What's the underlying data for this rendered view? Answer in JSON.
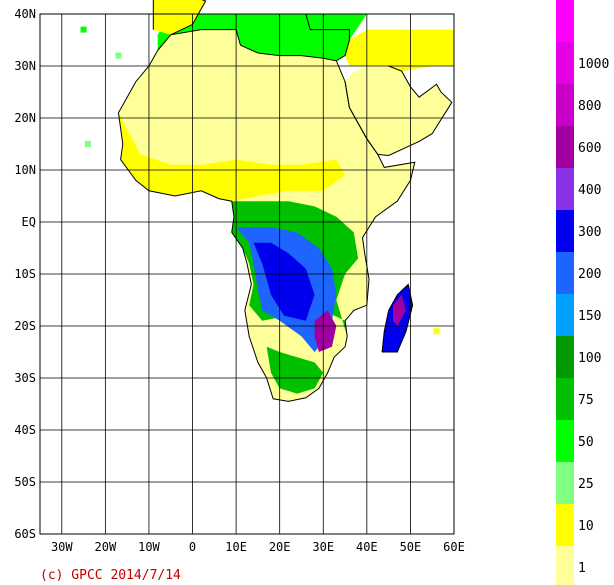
{
  "map": {
    "lon_range": [
      -35,
      60
    ],
    "lat_range": [
      -60,
      40
    ],
    "x_ticks": [
      {
        "value": -30,
        "label": "30W"
      },
      {
        "value": -20,
        "label": "20W"
      },
      {
        "value": -10,
        "label": "10W"
      },
      {
        "value": 0,
        "label": "0"
      },
      {
        "value": 10,
        "label": "10E"
      },
      {
        "value": 20,
        "label": "20E"
      },
      {
        "value": 30,
        "label": "30E"
      },
      {
        "value": 40,
        "label": "40E"
      },
      {
        "value": 50,
        "label": "50E"
      },
      {
        "value": 60,
        "label": "60E"
      }
    ],
    "y_ticks": [
      {
        "value": 40,
        "label": "40N"
      },
      {
        "value": 30,
        "label": "30N"
      },
      {
        "value": 20,
        "label": "20N"
      },
      {
        "value": 10,
        "label": "10N"
      },
      {
        "value": 0,
        "label": "EQ"
      },
      {
        "value": -10,
        "label": "10S"
      },
      {
        "value": -20,
        "label": "20S"
      },
      {
        "value": -30,
        "label": "30S"
      },
      {
        "value": -40,
        "label": "40S"
      },
      {
        "value": -50,
        "label": "50S"
      },
      {
        "value": -60,
        "label": "60S"
      }
    ],
    "grid": true
  },
  "legend": {
    "bins": [
      {
        "label": "1",
        "color": "#ffff99"
      },
      {
        "label": "10",
        "color": "#ffff00"
      },
      {
        "label": "25",
        "color": "#80ff80"
      },
      {
        "label": "50",
        "color": "#00ff00"
      },
      {
        "label": "75",
        "color": "#00c000"
      },
      {
        "label": "100",
        "color": "#009a00"
      },
      {
        "label": "150",
        "color": "#00a0ff"
      },
      {
        "label": "200",
        "color": "#1e64ff"
      },
      {
        "label": "300",
        "color": "#0000ee"
      },
      {
        "label": "400",
        "color": "#8c32e6"
      },
      {
        "label": "600",
        "color": "#a000a0"
      },
      {
        "label": "800",
        "color": "#c800c8"
      },
      {
        "label": "1000",
        "color": "#e600e6"
      },
      {
        "label": "",
        "color": "#ff00ff"
      }
    ]
  },
  "credit": "(c) GPCC 2014/7/14"
}
